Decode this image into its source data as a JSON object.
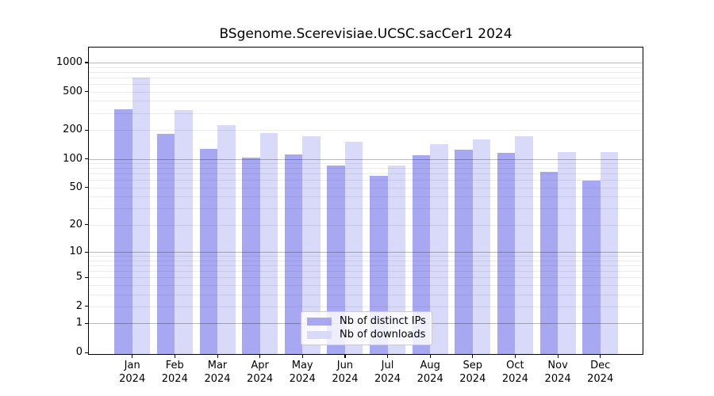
{
  "chart_data": {
    "type": "bar",
    "title": "BSgenome.Scerevisiae.UCSC.sacCer1 2024",
    "categories": [
      "Jan",
      "Feb",
      "Mar",
      "Apr",
      "May",
      "Jun",
      "Jul",
      "Aug",
      "Sep",
      "Oct",
      "Nov",
      "Dec"
    ],
    "x_tick_year": "2024",
    "series": [
      {
        "name": "Nb of distinct IPs",
        "color": "#a8a8f2",
        "values": [
          330,
          181,
          126,
          102,
          111,
          85,
          66,
          109,
          125,
          115,
          73,
          59
        ]
      },
      {
        "name": "Nb of downloads",
        "color": "#d9d9f9",
        "values": [
          700,
          320,
          225,
          186,
          173,
          150,
          85,
          143,
          159,
          171,
          118,
          117
        ]
      }
    ],
    "y_scale": "log1p",
    "y_ticks": [
      1000,
      500,
      200,
      100,
      50,
      20,
      10,
      5,
      2,
      1,
      0
    ],
    "ylim": [
      0,
      1430
    ],
    "xlabel": "",
    "ylabel": "",
    "grid": true,
    "legend_position": "lower center",
    "gridline_major_values": [
      1,
      10,
      100,
      1000
    ],
    "gridline_minor_values": [
      2,
      3,
      4,
      5,
      6,
      7,
      8,
      9,
      20,
      30,
      40,
      50,
      60,
      70,
      80,
      90,
      200,
      300,
      400,
      500,
      600,
      700,
      800,
      900
    ]
  }
}
